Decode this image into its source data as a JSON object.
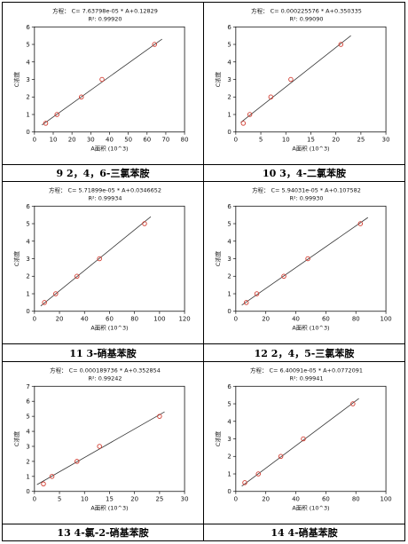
{
  "chart_data": [
    {
      "type": "scatter",
      "caption": "9 2，4，6-三氯苯胺",
      "equation": "方程：  C= 7.63798e-05 * A+0.12829",
      "r2": "R²: 0.99920",
      "xlabel": "A面积 (10^3)",
      "ylabel": "C浓度",
      "xlim": [
        0,
        80
      ],
      "ylim": [
        0,
        6
      ],
      "xticks": [
        0,
        10,
        20,
        30,
        40,
        50,
        60,
        70,
        80
      ],
      "yticks": [
        0,
        1,
        2,
        3,
        4,
        5,
        6
      ],
      "x": [
        6,
        12,
        25,
        36,
        64
      ],
      "y": [
        0.5,
        1,
        2,
        3,
        5
      ],
      "fit_line": [
        [
          4,
          0.4
        ],
        [
          68,
          5.3
        ]
      ],
      "color": "#d23b2f"
    },
    {
      "type": "scatter",
      "caption": "10 3，4-二氯苯胺",
      "equation": "方程：  C= 0.000225576 * A+0.350335",
      "r2": "R²: 0.99090",
      "xlabel": "A面积 (10^3)",
      "ylabel": "C浓度",
      "xlim": [
        0,
        30
      ],
      "ylim": [
        0,
        6
      ],
      "xticks": [
        0,
        5,
        10,
        15,
        20,
        25,
        30
      ],
      "yticks": [
        0,
        1,
        2,
        3,
        4,
        5,
        6
      ],
      "x": [
        1.5,
        2.8,
        7,
        11,
        21
      ],
      "y": [
        0.5,
        1,
        2,
        3,
        5
      ],
      "fit_line": [
        [
          1,
          0.55
        ],
        [
          23,
          5.5
        ]
      ],
      "color": "#d23b2f"
    },
    {
      "type": "scatter",
      "caption": "11 3-硝基苯胺",
      "equation": "方程：  C= 5.71899e-05 * A+0.0346652",
      "r2": "R²: 0.99934",
      "xlabel": "A面积 (10^3)",
      "ylabel": "C浓度",
      "xlim": [
        0,
        120
      ],
      "ylim": [
        0,
        6
      ],
      "xticks": [
        0,
        20,
        40,
        60,
        80,
        100,
        120
      ],
      "yticks": [
        0,
        1,
        2,
        3,
        4,
        5,
        6
      ],
      "x": [
        8,
        17,
        34,
        52,
        88
      ],
      "y": [
        0.5,
        1,
        2,
        3,
        5
      ],
      "fit_line": [
        [
          5,
          0.3
        ],
        [
          93,
          5.4
        ]
      ],
      "color": "#d23b2f"
    },
    {
      "type": "scatter",
      "caption": "12 2，4，5-三氯苯胺",
      "equation": "方程：  C= 5.94031e-05 * A+0.107582",
      "r2": "R²: 0.99930",
      "xlabel": "A面积 (10^3)",
      "ylabel": "C浓度",
      "xlim": [
        0,
        100
      ],
      "ylim": [
        0,
        6
      ],
      "xticks": [
        0,
        20,
        40,
        60,
        80,
        100
      ],
      "yticks": [
        0,
        1,
        2,
        3,
        4,
        5,
        6
      ],
      "x": [
        7,
        14,
        32,
        48,
        83
      ],
      "y": [
        0.5,
        1,
        2,
        3,
        5
      ],
      "fit_line": [
        [
          4,
          0.35
        ],
        [
          88,
          5.35
        ]
      ],
      "color": "#d23b2f"
    },
    {
      "type": "scatter",
      "caption": "13 4-氯-2-硝基苯胺",
      "equation": "方程：  C= 0.000189736 * A+0.352854",
      "r2": "R²: 0.99242",
      "xlabel": "A面积 (10^3)",
      "ylabel": "C浓度",
      "xlim": [
        0,
        30
      ],
      "ylim": [
        0,
        7
      ],
      "xticks": [
        0,
        5,
        10,
        15,
        20,
        25,
        30
      ],
      "yticks": [
        0,
        1,
        2,
        3,
        4,
        5,
        6,
        7
      ],
      "x": [
        1.8,
        3.5,
        8.5,
        13,
        25
      ],
      "y": [
        0.5,
        1,
        2,
        3,
        5
      ],
      "fit_line": [
        [
          0.5,
          0.45
        ],
        [
          26,
          5.3
        ]
      ],
      "color": "#d23b2f"
    },
    {
      "type": "scatter",
      "caption": "14 4-硝基苯胺",
      "equation": "方程：  C= 6.40091e-05 * A+0.0772091",
      "r2": "R²: 0.99941",
      "xlabel": "A面积 (10^3)",
      "ylabel": "C浓度",
      "xlim": [
        0,
        100
      ],
      "ylim": [
        0,
        6
      ],
      "xticks": [
        0,
        20,
        40,
        60,
        80,
        100
      ],
      "yticks": [
        0,
        1,
        2,
        3,
        4,
        5,
        6
      ],
      "x": [
        6,
        15,
        30,
        45,
        78
      ],
      "y": [
        0.5,
        1,
        2,
        3,
        5
      ],
      "fit_line": [
        [
          4,
          0.3
        ],
        [
          82,
          5.3
        ]
      ],
      "color": "#d23b2f"
    }
  ]
}
